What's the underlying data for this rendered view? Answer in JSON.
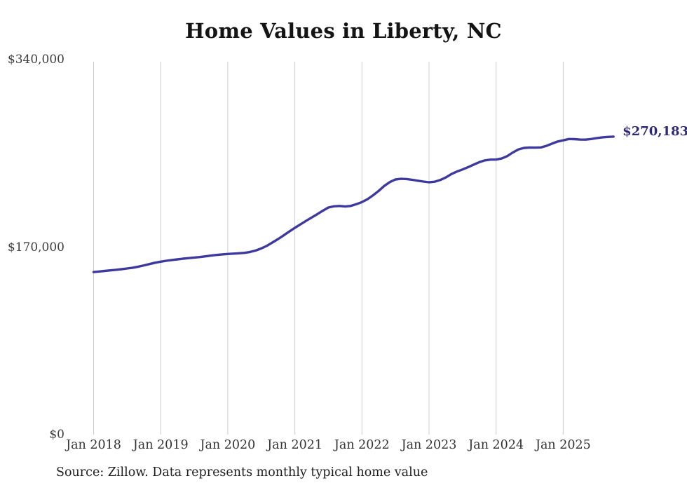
{
  "chart_data": {
    "type": "line",
    "title": "Home Values in Liberty, NC",
    "source_note": "Source: Zillow. Data represents monthly typical home value",
    "end_label": "$270,183",
    "end_value": 270183,
    "x_ticks": [
      "Jan 2018",
      "Jan 2019",
      "Jan 2020",
      "Jan 2021",
      "Jan 2022",
      "Jan 2023",
      "Jan 2024",
      "Jan 2025"
    ],
    "y_ticks": [
      {
        "label": "$340,000",
        "value": 340000
      },
      {
        "label": "$170,000",
        "value": 170000
      },
      {
        "label": "$0",
        "value": 0
      }
    ],
    "ylim": [
      0,
      340000
    ],
    "grid": "vertical-only",
    "legend": "none",
    "first_point_label": "Jan 2018",
    "points_interval": "monthly",
    "series": [
      {
        "name": "Typical home value",
        "values": [
          147400,
          147900,
          148400,
          148900,
          149400,
          150000,
          150600,
          151300,
          152300,
          153400,
          154600,
          155800,
          156800,
          157600,
          158300,
          158900,
          159500,
          160000,
          160500,
          161000,
          161600,
          162300,
          162900,
          163400,
          163800,
          164100,
          164400,
          164800,
          165600,
          166900,
          168800,
          171200,
          174200,
          177300,
          180600,
          184100,
          187500,
          190600,
          193800,
          196800,
          199800,
          203000,
          205900,
          207000,
          207300,
          206800,
          207300,
          208900,
          210800,
          213500,
          217000,
          221000,
          225500,
          229000,
          231300,
          231900,
          231700,
          231000,
          230200,
          229400,
          228800,
          229300,
          230800,
          233100,
          236200,
          238500,
          240400,
          242500,
          244800,
          247000,
          248600,
          249300,
          249400,
          250300,
          252500,
          255800,
          258600,
          259900,
          260300,
          260200,
          260400,
          261800,
          263800,
          265700,
          266800,
          268000,
          267900,
          267500,
          267400,
          268000,
          268800,
          269500,
          269900,
          270183
        ]
      }
    ],
    "colors": {
      "line": "#3e3a9d",
      "end_label": "#2c2a75",
      "gridline": "#cccccc"
    }
  }
}
